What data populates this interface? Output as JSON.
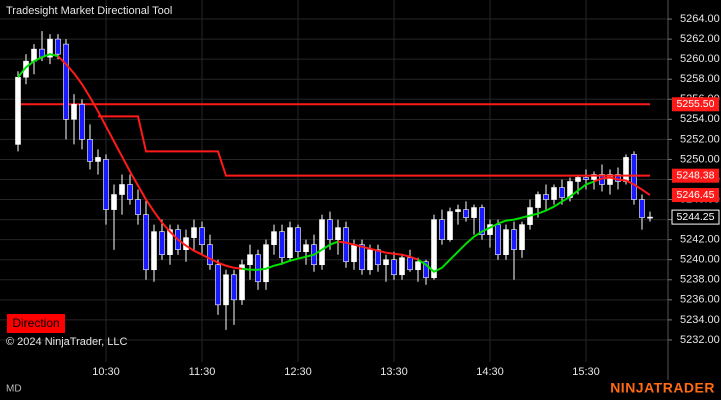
{
  "chart_data": {
    "type": "candlestick",
    "title": "Tradesight Market Directional Tool",
    "categories": [
      null,
      null,
      null,
      null,
      null,
      null,
      null,
      null,
      null,
      null,
      null,
      "10:30",
      null,
      null,
      null,
      null,
      null,
      null,
      null,
      null,
      null,
      null,
      null,
      "11:30",
      null,
      null,
      null,
      null,
      null,
      null,
      null,
      null,
      null,
      null,
      null,
      "12:30",
      null,
      null,
      null,
      null,
      null,
      null,
      null,
      null,
      null,
      null,
      null,
      "13:30",
      null,
      null,
      null,
      null,
      null,
      null,
      null,
      null,
      null,
      null,
      null,
      "14:30",
      null,
      null,
      null,
      null,
      null,
      null,
      null,
      null,
      null,
      null,
      null,
      "15:30",
      null,
      null,
      null,
      null,
      null,
      null,
      null,
      null
    ],
    "open": [
      5251.5,
      5258.2,
      5259.8,
      5261,
      5260.2,
      5262,
      5261.5,
      5254,
      5255.5,
      5252,
      5249.8,
      5250,
      5245,
      5246.5,
      5247.5,
      5246,
      5244.5,
      5239,
      5242.8,
      5240.5,
      5243,
      5241,
      5242.2,
      5243.2,
      5241.5,
      5239.5,
      5235.5,
      5238.5,
      5236,
      5239.5,
      5240.5,
      5237.8,
      5241.5,
      5242.8,
      5240.2,
      5243.2,
      5240.8,
      5241.5,
      5239.5,
      5244,
      5242,
      5243.2,
      5239.8,
      5241.5,
      5239,
      5241,
      5239.5,
      5240,
      5238.5,
      5240.2,
      5239,
      5239.8,
      5238.2,
      5244,
      5242,
      5244.8,
      5245,
      5244.2,
      5245.2,
      5242.5,
      5243.5,
      5240.5,
      5243,
      5241,
      5243.5,
      5245.2,
      5246.5,
      5246,
      5247.2,
      5246.2,
      5247.8,
      5248.2,
      5248,
      5248.5,
      5247.5,
      5248.5,
      5247.8,
      5250.5,
      5246,
      5244.2
    ],
    "high": [
      5258.8,
      5260.5,
      5261.5,
      5262.8,
      5262.5,
      5262.5,
      5262,
      5256.5,
      5256,
      5253.5,
      5251,
      5250.5,
      5247.5,
      5248.5,
      5248.5,
      5247,
      5246,
      5243.5,
      5244,
      5243.5,
      5243.5,
      5243,
      5244,
      5243.8,
      5242.5,
      5240,
      5239,
      5239,
      5240,
      5241.5,
      5241,
      5242,
      5243.5,
      5243.5,
      5243.8,
      5243.5,
      5242,
      5242.5,
      5244.5,
      5244.8,
      5244,
      5243.8,
      5242,
      5242,
      5241.5,
      5241.5,
      5240.5,
      5240.8,
      5240.5,
      5241,
      5240.2,
      5240,
      5244.5,
      5245,
      5245.2,
      5245.5,
      5245.8,
      5245.5,
      5245.5,
      5244,
      5244,
      5243.5,
      5243.8,
      5243.8,
      5246,
      5246.8,
      5247.5,
      5247.5,
      5248,
      5248.2,
      5248.5,
      5249,
      5248.8,
      5249.5,
      5249,
      5249.2,
      5250.5,
      5250.8,
      5246.5,
      5244.8
    ],
    "low": [
      5250.8,
      5257.5,
      5258.5,
      5259.8,
      5259.5,
      5260,
      5252,
      5251.5,
      5251,
      5249,
      5248.5,
      5243.5,
      5241,
      5244.5,
      5245.5,
      5243.5,
      5238,
      5237.8,
      5240,
      5239.5,
      5240.5,
      5239.8,
      5241,
      5240.5,
      5239,
      5234.5,
      5233,
      5233.5,
      5235.5,
      5238,
      5237,
      5237,
      5240.5,
      5239.5,
      5239.8,
      5240.2,
      5239.5,
      5238.8,
      5239,
      5241,
      5240.5,
      5239.2,
      5239,
      5238.5,
      5238.5,
      5238.8,
      5237.8,
      5238,
      5238,
      5238.8,
      5237.8,
      5237.5,
      5238,
      5241.5,
      5241.8,
      5243.5,
      5243.8,
      5242.5,
      5242,
      5241.2,
      5240,
      5240,
      5238,
      5240.2,
      5243,
      5244.2,
      5245,
      5245.5,
      5245.5,
      5245.8,
      5246.5,
      5247,
      5247,
      5246.8,
      5246.5,
      5247,
      5247.5,
      5245.5,
      5243,
      5243.8
    ],
    "close": [
      5258.2,
      5259.8,
      5261,
      5260.2,
      5262,
      5260.5,
      5254,
      5255.5,
      5252,
      5249.8,
      5250.2,
      5245,
      5246.5,
      5247.5,
      5246,
      5244.5,
      5239,
      5242.8,
      5240.5,
      5243,
      5241,
      5242.2,
      5243.2,
      5241.5,
      5239.5,
      5235.5,
      5238.5,
      5236,
      5239.5,
      5240.5,
      5237.8,
      5241.5,
      5242.8,
      5240.2,
      5243.2,
      5240.8,
      5241.5,
      5239.5,
      5244,
      5242,
      5243.2,
      5239.8,
      5241.5,
      5239,
      5241,
      5239.5,
      5240,
      5238.5,
      5240.2,
      5239,
      5239.8,
      5238.2,
      5244,
      5242,
      5244.8,
      5245,
      5244.2,
      5245.2,
      5242.5,
      5243.5,
      5240.5,
      5243,
      5241,
      5243.5,
      5245.2,
      5246.5,
      5246,
      5247.2,
      5246.2,
      5247.8,
      5248.2,
      5248,
      5248.5,
      5247.5,
      5248.5,
      5247.8,
      5250.2,
      5246,
      5244.2,
      5244.25
    ],
    "up_color": "#ffffff",
    "down_color": "#1a1aff",
    "series": [
      {
        "color": "#00e000",
        "values": [
          5258.2,
          5259.2,
          5259.8,
          5260.2,
          5260.5,
          5260.3,
          null,
          null,
          null,
          null,
          null,
          null,
          null,
          null,
          null,
          null,
          null,
          null,
          null,
          null,
          null,
          null,
          null,
          null,
          null,
          null,
          null,
          null,
          5239.1,
          5239,
          5239,
          5239.1,
          5239.4,
          5239.6,
          5239.9,
          5240.1,
          5240.3,
          5240.5,
          5241,
          5241.5,
          5241.8,
          null,
          null,
          null,
          null,
          null,
          null,
          null,
          null,
          null,
          5240,
          5239.5,
          5238.8,
          5239.2,
          5240,
          5240.8,
          5241.6,
          5242.3,
          5242.8,
          5243.2,
          5243.6,
          5243.9,
          5244,
          5244.2,
          5244.4,
          5244.6,
          5244.9,
          5245.3,
          5245.8,
          5246.3,
          5246.9,
          5247.5,
          5247.8,
          null,
          null,
          null,
          null,
          null,
          null,
          null
        ]
      },
      {
        "color": "#ff1a1a",
        "values": [
          null,
          null,
          null,
          null,
          null,
          5260.3,
          5259.5,
          5258.6,
          5257.5,
          5256.2,
          5254.8,
          5253.3,
          5251.8,
          5250.3,
          5248.8,
          5247.4,
          5246,
          5244.8,
          5243.7,
          5242.8,
          5242,
          5241.4,
          5240.9,
          5240.5,
          5240.1,
          5239.7,
          5239.4,
          5239.2,
          5239.1,
          null,
          null,
          null,
          null,
          null,
          null,
          null,
          null,
          null,
          null,
          null,
          5241.8,
          5241.7,
          5241.5,
          5241.3,
          5241.1,
          5240.9,
          5240.7,
          5240.6,
          5240.5,
          5240.3,
          5240,
          null,
          null,
          null,
          null,
          null,
          null,
          null,
          null,
          null,
          null,
          null,
          null,
          null,
          null,
          null,
          null,
          null,
          null,
          null,
          null,
          null,
          5247.8,
          5248.1,
          5248.2,
          5248,
          5247.9,
          5247.5,
          5247,
          5246.45
        ]
      },
      {
        "color": "#ff1a1a",
        "values": [
          null,
          null,
          null,
          null,
          null,
          null,
          null,
          null,
          null,
          null,
          5254.3,
          5254.3,
          5254.3,
          5254.3,
          5254.3,
          5254.3,
          5250.8,
          5250.8,
          5250.8,
          5250.8,
          5250.8,
          5250.8,
          5250.8,
          5250.8,
          5250.8,
          5250.8,
          5248.38,
          5248.38,
          5248.38,
          5248.38,
          5248.38,
          5248.38,
          5248.38,
          5248.38,
          5248.38,
          5248.38,
          5248.38,
          5248.38,
          5248.38,
          5248.38,
          5248.38,
          5248.38,
          5248.38,
          5248.38,
          5248.38,
          5248.38,
          5248.38,
          5248.38,
          5248.38,
          5248.38,
          5248.38,
          5248.38,
          5248.38,
          5248.38,
          5248.38,
          5248.38,
          5248.38,
          5248.38,
          5248.38,
          5248.38,
          5248.38,
          5248.38,
          5248.38,
          5248.38,
          5248.38,
          5248.38,
          5248.38,
          5248.38,
          5248.38,
          5248.38,
          5248.38,
          5248.38,
          5248.38,
          5248.38,
          5248.38,
          5248.38,
          5248.38,
          5248.38,
          5248.38,
          5248.38
        ]
      }
    ],
    "markers": [
      {
        "value": 5255.5,
        "label": "5255.50",
        "color": "#ff1a1a",
        "horizontal_line": true
      },
      {
        "value": 5248.38,
        "label": "5248.38",
        "color": "#ff1a1a"
      },
      {
        "value": 5246.45,
        "label": "5246.45",
        "color": "#ff1a1a"
      },
      {
        "value": 5244.25,
        "label": "5244.25",
        "color": "#000000"
      }
    ],
    "ylim": [
      5229.8,
      5265.9
    ],
    "yticks": [
      {
        "value": 5232,
        "label": "5232.00"
      },
      {
        "value": 5234,
        "label": "5234.00"
      },
      {
        "value": 5236,
        "label": "5236.00"
      },
      {
        "value": 5238,
        "label": "5238.00"
      },
      {
        "value": 5240,
        "label": "5240.00"
      },
      {
        "value": 5242,
        "label": "5242.00"
      },
      {
        "value": 5244,
        "label": "5244.00"
      },
      {
        "value": 5246,
        "label": "5246.00"
      },
      {
        "value": 5248,
        "label": "5248.00"
      },
      {
        "value": 5250,
        "label": "5250.00"
      },
      {
        "value": 5252,
        "label": "5252.00"
      },
      {
        "value": 5254,
        "label": "5254.00"
      },
      {
        "value": 5256,
        "label": "5256.00"
      },
      {
        "value": 5258,
        "label": "5258.00"
      },
      {
        "value": 5260,
        "label": "5260.00"
      },
      {
        "value": 5262,
        "label": "5262.00"
      },
      {
        "value": 5264,
        "label": "5264.00"
      }
    ],
    "grid": true
  },
  "copyright": "© 2024 NinjaTrader, LLC",
  "button": "Direction",
  "footer_left": "MD",
  "logo": "NINJATRADER"
}
